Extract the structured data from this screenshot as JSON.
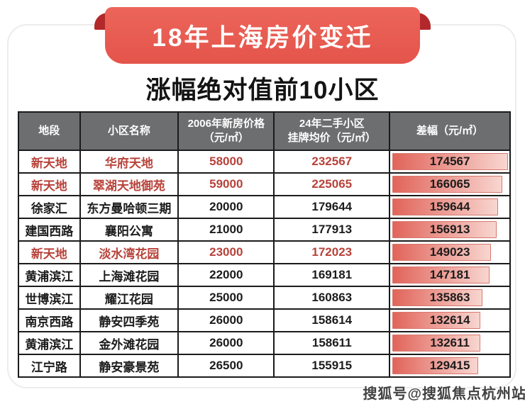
{
  "banner": {
    "title": "18年上海房价变迁"
  },
  "subtitle": "涨幅绝对值前10小区",
  "table": {
    "headers": [
      "地段",
      "小区名称",
      "2006年新房价格\n（元/㎡）",
      "24年二手小区\n挂牌均价（元/㎡）",
      "差幅（元/㎡）"
    ]
  },
  "chart_data": {
    "type": "table",
    "title": "18年上海房价变迁",
    "subtitle": "涨幅绝对值前10小区",
    "columns": [
      "地段",
      "小区名称",
      "2006年新房价格（元/㎡）",
      "24年二手小区挂牌均价（元/㎡）",
      "差幅（元/㎡）"
    ],
    "rows": [
      {
        "district": "新天地",
        "community": "华府天地",
        "price_2006": 58000,
        "price_2024": 232567,
        "diff": 174567,
        "highlight": true
      },
      {
        "district": "新天地",
        "community": "翠湖天地御苑",
        "price_2006": 59000,
        "price_2024": 225065,
        "diff": 166065,
        "highlight": true
      },
      {
        "district": "徐家汇",
        "community": "东方曼哈顿三期",
        "price_2006": 20000,
        "price_2024": 179644,
        "diff": 159644,
        "highlight": false
      },
      {
        "district": "建国西路",
        "community": "襄阳公寓",
        "price_2006": 21000,
        "price_2024": 177913,
        "diff": 156913,
        "highlight": false
      },
      {
        "district": "新天地",
        "community": "淡水湾花园",
        "price_2006": 23000,
        "price_2024": 172023,
        "diff": 149023,
        "highlight": true
      },
      {
        "district": "黄浦滨江",
        "community": "上海滩花园",
        "price_2006": 22000,
        "price_2024": 169181,
        "diff": 147181,
        "highlight": false
      },
      {
        "district": "世博滨江",
        "community": "耀江花园",
        "price_2006": 25000,
        "price_2024": 160863,
        "diff": 135863,
        "highlight": false
      },
      {
        "district": "南京西路",
        "community": "静安四季苑",
        "price_2006": 26000,
        "price_2024": 158614,
        "diff": 132614,
        "highlight": false
      },
      {
        "district": "黄浦滨江",
        "community": "金外滩花园",
        "price_2006": 26000,
        "price_2024": 158611,
        "diff": 132611,
        "highlight": false
      },
      {
        "district": "江宁路",
        "community": "静安豪景苑",
        "price_2006": 26500,
        "price_2024": 155915,
        "diff": 129415,
        "highlight": false
      }
    ],
    "bar_max": 174567,
    "bar_direction": "left-to-right",
    "legend_position": "none",
    "grid": "full-borders"
  },
  "watermark": "搜狐号@搜狐焦点杭州站",
  "colors": {
    "ribbon_red": "#e95a50",
    "ribbon_fold_red": "#b3282a",
    "header_bg": "#6d6e70",
    "header_text": "#ffffff",
    "highlight_text": "#b8423a",
    "body_text": "#1c1c1c",
    "table_border": "#1b1b1b",
    "bar_gradient_start": "#e1645a",
    "bar_gradient_end": "#f8d6d0",
    "bar_border": "#d6786e",
    "card_border": "#ececec"
  }
}
